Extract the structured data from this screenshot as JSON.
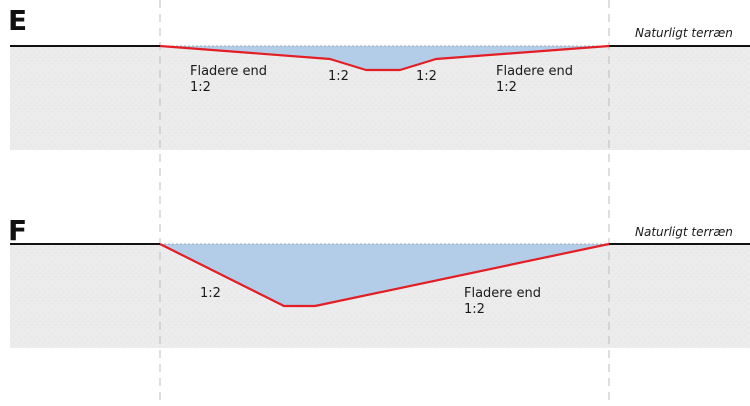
{
  "colors": {
    "profile_line": "#e31e24",
    "water": "#b3cde9",
    "soil": "#ececec",
    "ground_line": "#111111",
    "guide_dash": "#bdbdbd"
  },
  "section_e": {
    "letter": "E",
    "terrain_label": "Naturligt terræn",
    "labels": {
      "left_flat_1": "Fladere end",
      "left_flat_2": "1:2",
      "left_slope": "1:2",
      "right_slope": "1:2",
      "right_flat_1": "Fladere end",
      "right_flat_2": "1:2"
    }
  },
  "section_f": {
    "letter": "F",
    "terrain_label": "Naturligt terræn",
    "labels": {
      "left_slope": "1:2",
      "right_flat_1": "Fladere end",
      "right_flat_2": "1:2"
    }
  }
}
